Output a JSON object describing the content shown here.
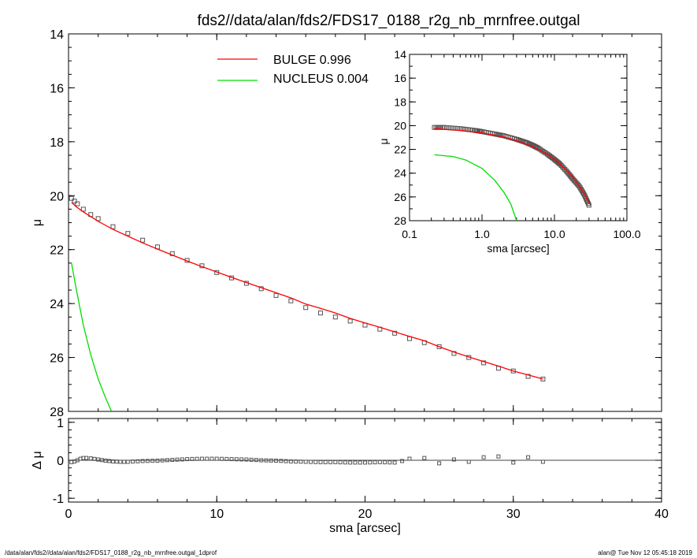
{
  "chart_data": [
    {
      "type": "scatter",
      "title": "fds2//data/alan/fds2/FDS17_0188_r2g_nb_mrnfree.outgal",
      "xlabel": "",
      "ylabel": "μ",
      "xlim": [
        0,
        40
      ],
      "ylim": [
        28,
        14
      ],
      "y_inverted": true,
      "y_ticks": [
        "14",
        "16",
        "18",
        "20",
        "22",
        "24",
        "26",
        "28"
      ],
      "x_ticks": [
        "",
        "",
        "",
        "",
        ""
      ],
      "legend": [
        {
          "name": "BULGE",
          "value": "0.996",
          "color": "#ff0000"
        },
        {
          "name": "NUCLEUS",
          "value": "0.004",
          "color": "#00dd00"
        }
      ],
      "legend_position": "top-center",
      "series": [
        {
          "role": "data",
          "color": "#444444",
          "x": [
            0.2,
            0.4,
            0.6,
            1,
            1.5,
            2,
            3,
            4,
            5,
            6,
            7,
            8,
            9,
            10,
            11,
            12,
            13,
            14,
            15,
            16,
            17,
            18,
            19,
            20,
            21,
            22,
            23,
            24,
            25,
            26,
            27,
            28,
            29,
            30,
            31,
            32
          ],
          "y": [
            20.1,
            20.2,
            20.3,
            20.5,
            20.7,
            20.85,
            21.15,
            21.4,
            21.65,
            21.9,
            22.15,
            22.4,
            22.6,
            22.85,
            23.05,
            23.25,
            23.45,
            23.7,
            23.9,
            24.15,
            24.35,
            24.5,
            24.65,
            24.8,
            24.95,
            25.1,
            25.3,
            25.45,
            25.6,
            25.85,
            26.0,
            26.2,
            26.4,
            26.5,
            26.7,
            26.8
          ]
        },
        {
          "name": "BULGE",
          "color": "#ff0000",
          "x": [
            0.2,
            0.5,
            1,
            2,
            3,
            4,
            5,
            6,
            7,
            8,
            9,
            10,
            11,
            12,
            13,
            14,
            15,
            16,
            17,
            18,
            19,
            20,
            21,
            22,
            23,
            24,
            25,
            26,
            27,
            28,
            29,
            30,
            31,
            32
          ],
          "y": [
            20.25,
            20.4,
            20.6,
            20.95,
            21.25,
            21.5,
            21.75,
            21.98,
            22.2,
            22.42,
            22.63,
            22.83,
            23.03,
            23.22,
            23.41,
            23.6,
            23.79,
            24.02,
            24.18,
            24.35,
            24.55,
            24.72,
            24.88,
            25.05,
            25.22,
            25.38,
            25.6,
            25.8,
            25.98,
            26.15,
            26.32,
            26.5,
            26.65,
            26.8
          ]
        },
        {
          "name": "NUCLEUS",
          "color": "#00dd00",
          "x": [
            0.2,
            0.5,
            1,
            1.5,
            2,
            2.5,
            2.9
          ],
          "y": [
            22.5,
            23.4,
            24.8,
            25.9,
            26.8,
            27.5,
            28.0
          ]
        }
      ]
    },
    {
      "type": "scatter",
      "title": "",
      "xlabel": "sma [arcsec]",
      "ylabel": "μ",
      "x_scale": "log",
      "xlim": [
        0.1,
        100
      ],
      "ylim": [
        28,
        14
      ],
      "y_inverted": true,
      "x_ticks": [
        "0.1",
        "1.0",
        "10.0",
        "100.0"
      ],
      "y_ticks": [
        "14",
        "16",
        "18",
        "20",
        "22",
        "24",
        "26",
        "28"
      ],
      "series": [
        {
          "role": "data",
          "color": "#444444",
          "x": [
            0.22,
            0.3,
            0.5,
            0.8,
            1,
            1.5,
            2,
            3,
            4,
            5,
            6,
            8,
            10,
            12,
            15,
            18,
            22,
            26,
            30
          ],
          "y": [
            20.15,
            20.15,
            20.25,
            20.4,
            20.5,
            20.7,
            20.85,
            21.15,
            21.4,
            21.65,
            21.9,
            22.4,
            22.85,
            23.25,
            23.9,
            24.5,
            25.1,
            25.85,
            26.7
          ]
        },
        {
          "name": "BULGE",
          "color": "#ff0000",
          "x": [
            0.22,
            0.5,
            1,
            2,
            3,
            5,
            8,
            10,
            15,
            20,
            25,
            30
          ],
          "y": [
            20.25,
            20.4,
            20.6,
            20.95,
            21.25,
            21.75,
            22.42,
            22.83,
            23.79,
            24.72,
            25.6,
            26.5
          ]
        },
        {
          "name": "NUCLEUS",
          "color": "#00dd00",
          "x": [
            0.22,
            0.4,
            0.6,
            1,
            1.5,
            2,
            2.5,
            3
          ],
          "y": [
            22.45,
            22.6,
            22.9,
            23.6,
            24.6,
            25.6,
            26.6,
            28.0
          ]
        }
      ]
    },
    {
      "type": "scatter",
      "title": "",
      "xlabel": "sma [arcsec]",
      "ylabel": "Δ μ",
      "xlim": [
        0,
        40
      ],
      "ylim": [
        -1.1,
        1.1
      ],
      "x_ticks": [
        "0",
        "10",
        "20",
        "30",
        "40"
      ],
      "y_ticks": [
        "1",
        "0",
        "-1"
      ],
      "reference_line": 0,
      "series": [
        {
          "role": "residual",
          "color": "#444444",
          "x": [
            0.2,
            0.4,
            0.6,
            0.8,
            1,
            1.2,
            1.5,
            2,
            2.5,
            3,
            3.5,
            4,
            5,
            6,
            7,
            8,
            9,
            10,
            11,
            12,
            13,
            14,
            15,
            16,
            17,
            18,
            19,
            20,
            21,
            22,
            22.5,
            23,
            24,
            25,
            26,
            27,
            28,
            29,
            30,
            31,
            32
          ],
          "y": [
            -0.05,
            -0.03,
            0.0,
            0.04,
            0.06,
            0.06,
            0.05,
            0.02,
            -0.01,
            -0.03,
            -0.04,
            -0.04,
            -0.02,
            -0.01,
            0.01,
            0.03,
            0.04,
            0.04,
            0.03,
            0.02,
            0.0,
            -0.01,
            -0.03,
            -0.04,
            -0.05,
            -0.05,
            -0.06,
            -0.06,
            -0.05,
            -0.06,
            -0.02,
            0.04,
            0.06,
            -0.08,
            0.02,
            -0.04,
            0.08,
            0.1,
            -0.06,
            0.08,
            -0.04
          ]
        }
      ]
    }
  ],
  "footer": {
    "left": "/data/alan/fds2//data/alan/fds2/FDS17_0188_r2g_nb_mrnfree.outgal_1dprof",
    "right": "alan@  Tue Nov 12 05:45:18 2019"
  }
}
